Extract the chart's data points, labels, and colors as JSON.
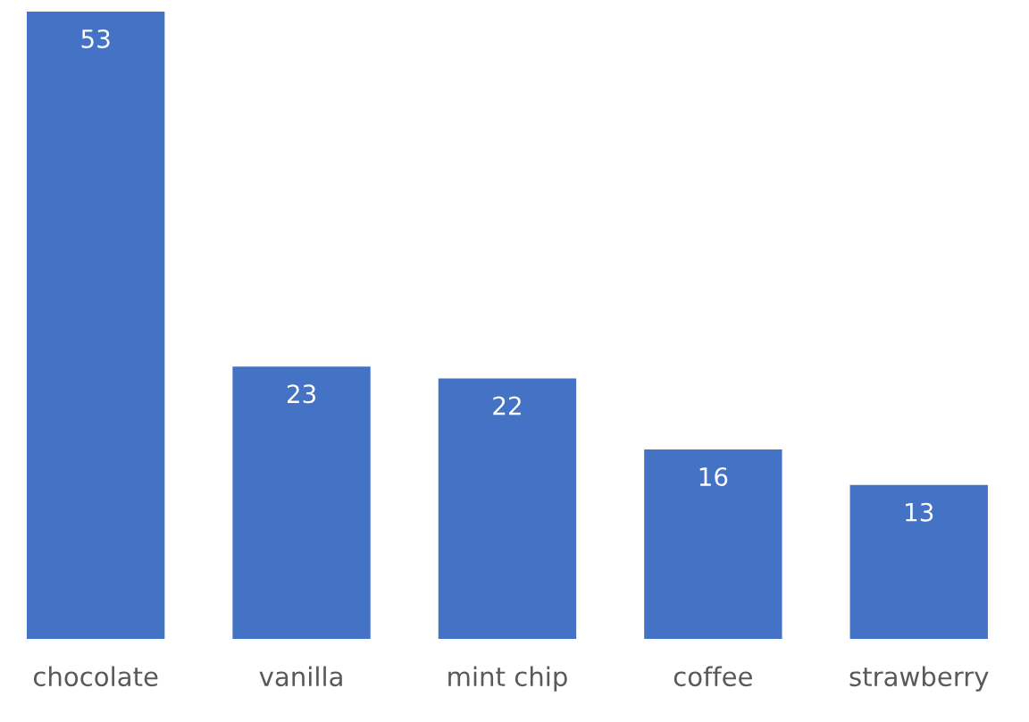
{
  "chart_data": {
    "type": "bar",
    "categories": [
      "chocolate",
      "vanilla",
      "mint chip",
      "coffee",
      "strawberry"
    ],
    "values": [
      53,
      23,
      22,
      16,
      13
    ],
    "color": "#4472c4",
    "data_labels": true,
    "grid": false,
    "legend": false
  }
}
